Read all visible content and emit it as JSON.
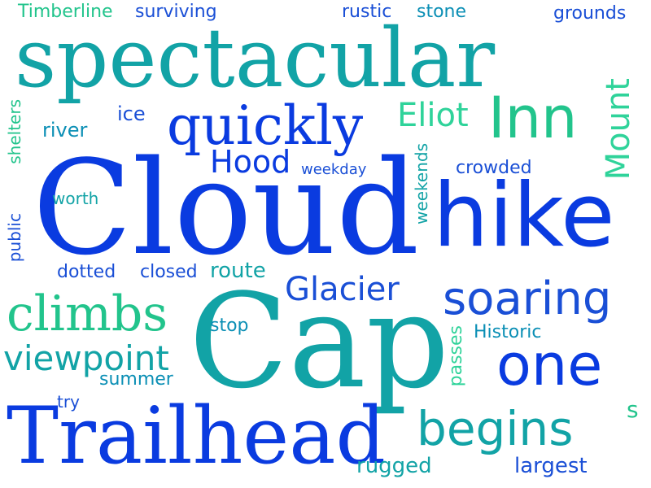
{
  "palette": {
    "blue": "#0a3be0",
    "royal": "#1a4fd6",
    "teal": "#12a3a6",
    "cyan": "#0b8fb5",
    "green": "#22c48c",
    "mint": "#2fd39a"
  },
  "words": {
    "cloud": "Cloud",
    "cap": "Cap",
    "spectacular": "spectacular",
    "hike": "hike",
    "trailhead": "Trailhead",
    "quickly": "quickly",
    "inn": "Inn",
    "climbs": "climbs",
    "one": "one",
    "soaring": "soaring",
    "begins": "begins",
    "viewpoint": "viewpoint",
    "hood": "Hood",
    "glacier": "Glacier",
    "eliot": "Eliot",
    "mount": "Mount",
    "timberline": "Timberline",
    "surviving": "surviving",
    "rustic": "rustic",
    "stone": "stone",
    "grounds": "grounds",
    "river": "river",
    "ice": "ice",
    "shelters": "shelters",
    "weekday": "weekday",
    "weekends": "weekends",
    "crowded": "crowded",
    "worth": "worth",
    "public": "public",
    "dotted": "dotted",
    "closed": "closed",
    "route": "route",
    "stop": "stop",
    "historic": "Historic",
    "passes": "passes",
    "summer": "summer",
    "try": "try",
    "s": "s",
    "rugged": "rugged",
    "largest": "largest"
  }
}
